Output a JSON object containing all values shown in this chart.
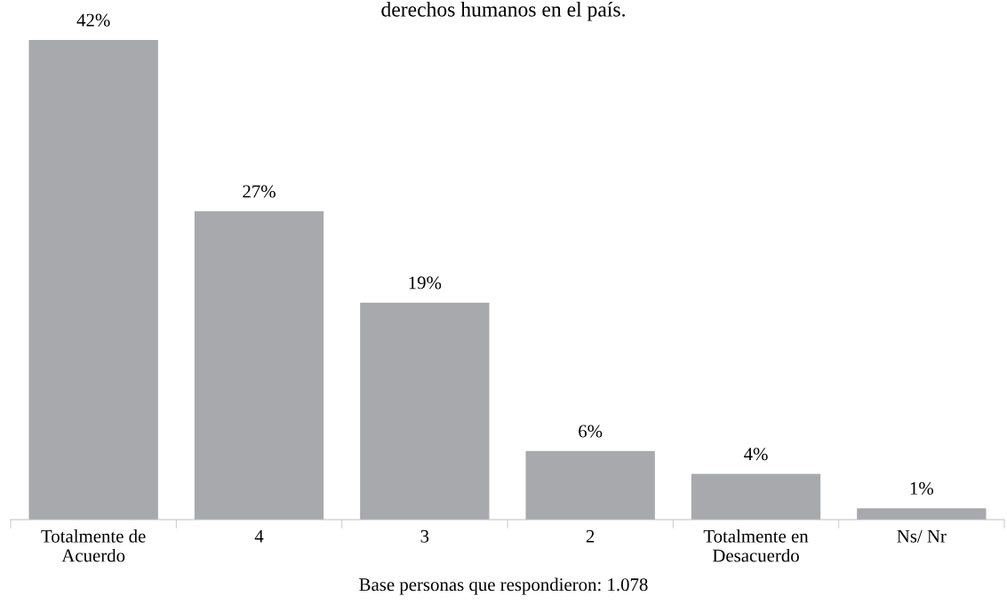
{
  "chart_data": {
    "type": "bar",
    "title": "derechos humanos en el país.",
    "categories": [
      "Totalmente de\nAcuerdo",
      "4",
      "3",
      "2",
      "Totalmente en\nDesacuerdo",
      "Ns/ Nr"
    ],
    "values": [
      42,
      27,
      19,
      6,
      4,
      1
    ],
    "color": "#a7a9ac",
    "data_labels": true,
    "value_labels": [
      "42%",
      "27%",
      "19%",
      "6%",
      "4%",
      "1%"
    ],
    "grid": false,
    "legend": false,
    "annotations": [
      "Base personas que respondieron: 1.078"
    ]
  }
}
